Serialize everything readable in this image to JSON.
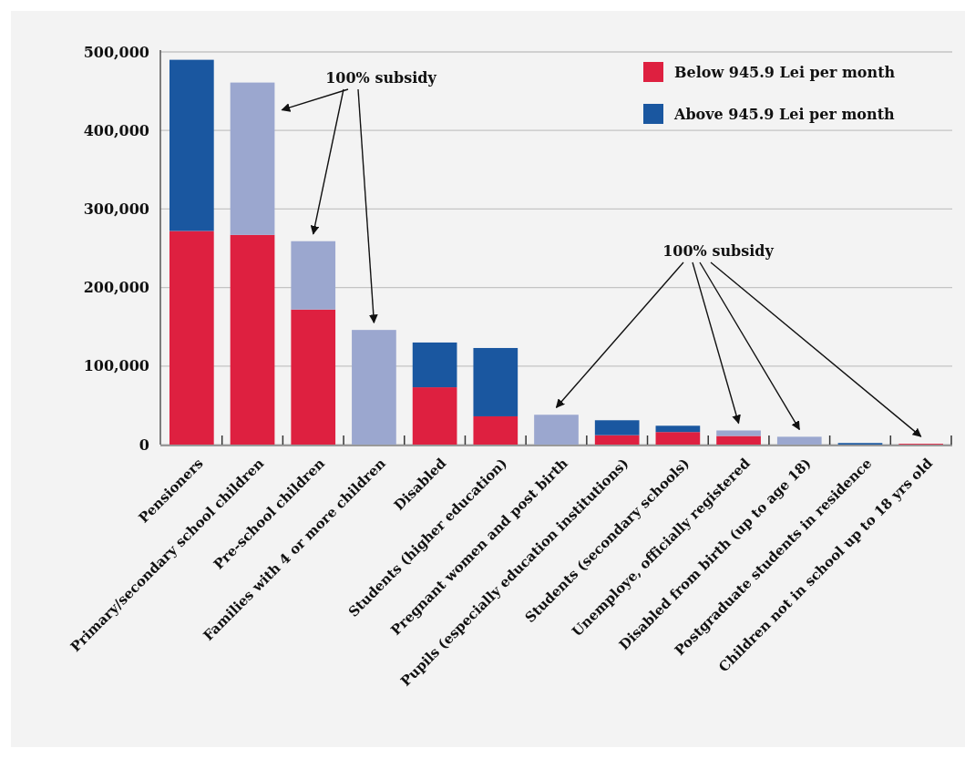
{
  "chart_data": {
    "type": "bar",
    "stacked": true,
    "categories": [
      "Pensioners",
      "Primary/secondary school children",
      "Pre-school children",
      "Families with 4 or more children",
      "Disabled",
      "Students (higher education)",
      "Pregnant women and post birth",
      "Pupils (especially education institutions)",
      "Students (secondary schools)",
      "Unemploye, officially registered",
      "Disabled from birth (up to age 18)",
      "Postgraduate students in residence",
      "Children not in school up to 18 yrs old"
    ],
    "series": [
      {
        "name": "Below 945.9 Lei per month",
        "color": "#de2040",
        "values": [
          272000,
          267000,
          172000,
          0,
          73000,
          36000,
          0,
          12000,
          16000,
          11000,
          0,
          0,
          1000
        ]
      },
      {
        "name": "Above 945.9 Lei per month",
        "color": "#1a57a0",
        "values": [
          218000,
          0,
          0,
          0,
          57000,
          87000,
          0,
          19000,
          8000,
          0,
          0,
          2000,
          0
        ]
      },
      {
        "color": "#9ba7cf",
        "values": [
          0,
          194000,
          87000,
          146000,
          0,
          0,
          38000,
          0,
          0,
          7000,
          10000,
          0,
          0
        ]
      }
    ],
    "ylim": [
      0,
      500000
    ],
    "yticks": [
      {
        "value": 0,
        "label": "0"
      },
      {
        "value": 100000,
        "label": "100,000"
      },
      {
        "value": 200000,
        "label": "200,000"
      },
      {
        "value": 300000,
        "label": "300,000"
      },
      {
        "value": 400000,
        "label": "400,000"
      },
      {
        "value": 500000,
        "label": "500,000"
      }
    ],
    "grid": "y",
    "legend": "top right",
    "annotations": [
      "100% subsidy",
      "100% subsidy"
    ]
  }
}
